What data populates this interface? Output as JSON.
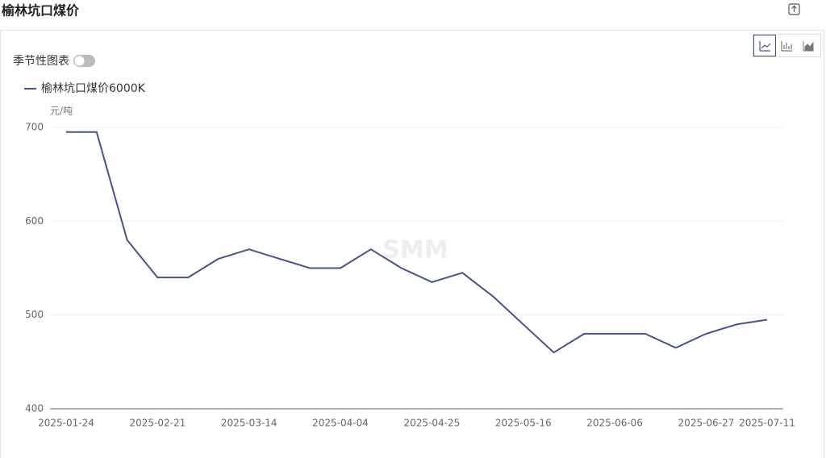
{
  "ui": {
    "seasonal_toggle": "季节性图表"
  },
  "chart_data": {
    "type": "line",
    "title": "榆林坑口煤价",
    "y_unit": "元/吨",
    "watermark": "SMM",
    "categories": [
      "2025-01-24",
      null,
      null,
      "2025-02-21",
      null,
      null,
      "2025-03-14",
      null,
      null,
      "2025-04-04",
      null,
      null,
      "2025-04-25",
      null,
      null,
      "2025-05-16",
      null,
      null,
      "2025-06-06",
      null,
      null,
      "2025-06-27",
      null,
      "2025-07-11"
    ],
    "series": [
      {
        "name": "榆林坑口煤价6000K",
        "color": "#47518f",
        "values": [
          695,
          695,
          580,
          540,
          540,
          560,
          570,
          560,
          550,
          550,
          570,
          550,
          535,
          545,
          520,
          490,
          460,
          480,
          480,
          480,
          465,
          480,
          490,
          495
        ]
      }
    ],
    "ylim": [
      400,
      700
    ],
    "yticks": [
      400,
      500,
      600,
      700
    ],
    "grid": true
  }
}
